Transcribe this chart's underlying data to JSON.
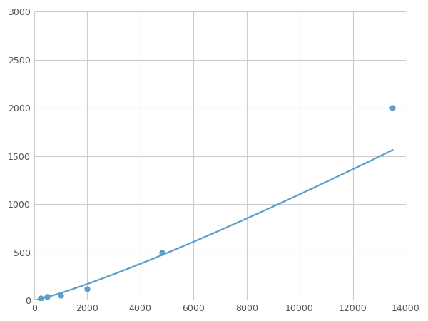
{
  "x_points": [
    250,
    500,
    1000,
    2000,
    4800,
    13500
  ],
  "y_points": [
    20,
    40,
    50,
    120,
    500,
    2000
  ],
  "line_color": "#5b9ec9",
  "marker_color": "#5b9ec9",
  "marker_size": 6,
  "marker_style": "o",
  "line_width": 1.6,
  "xlim": [
    0,
    14000
  ],
  "ylim": [
    0,
    3000
  ],
  "xticks": [
    0,
    2000,
    4000,
    6000,
    8000,
    10000,
    12000,
    14000
  ],
  "yticks": [
    0,
    500,
    1000,
    1500,
    2000,
    2500,
    3000
  ],
  "xtick_labels": [
    "0",
    "2000",
    "4000",
    "6000",
    "8000",
    "10000",
    "12000",
    "14000"
  ],
  "ytick_labels": [
    "0",
    "500",
    "1000",
    "1500",
    "2000",
    "2500",
    "3000"
  ],
  "grid_color": "#cccccc",
  "grid_linewidth": 0.8,
  "background_color": "#ffffff",
  "figsize": [
    6.0,
    4.5
  ],
  "dpi": 100
}
